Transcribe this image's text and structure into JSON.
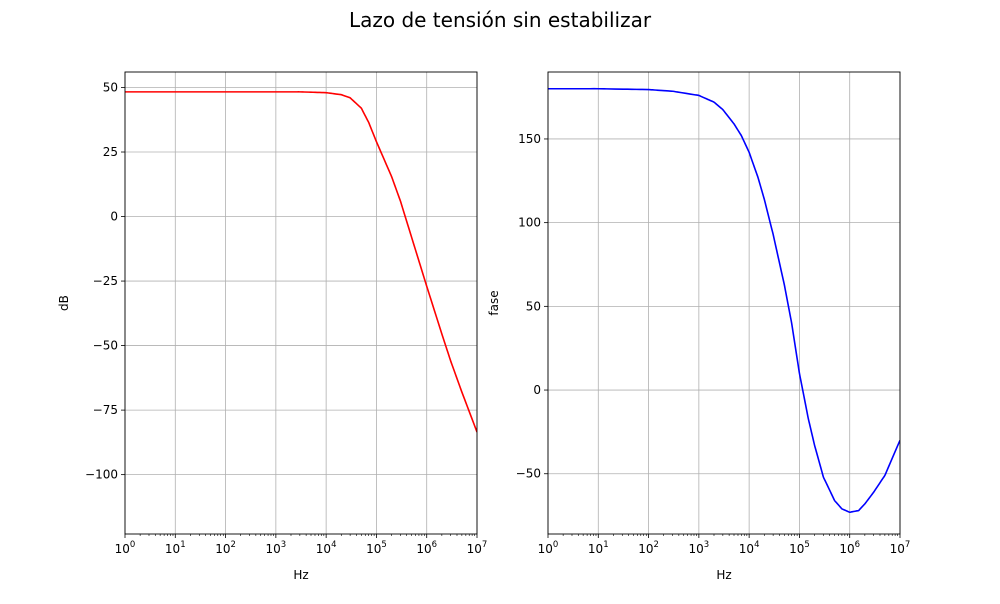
{
  "figure": {
    "title": "Lazo de tensión sin estabilizar"
  },
  "chart_data": [
    {
      "type": "line",
      "xlabel": "Hz",
      "ylabel": "dB",
      "xscale": "log",
      "xlim": [
        1,
        10000000
      ],
      "ylim": [
        -123,
        56
      ],
      "grid": true,
      "xticks": [
        {
          "base": "10",
          "exp": "0"
        },
        {
          "base": "10",
          "exp": "1"
        },
        {
          "base": "10",
          "exp": "2"
        },
        {
          "base": "10",
          "exp": "3"
        },
        {
          "base": "10",
          "exp": "4"
        },
        {
          "base": "10",
          "exp": "5"
        },
        {
          "base": "10",
          "exp": "6"
        },
        {
          "base": "10",
          "exp": "7"
        }
      ],
      "yticks": [
        {
          "value": 50,
          "label": "50"
        },
        {
          "value": 25,
          "label": "25"
        },
        {
          "value": 0,
          "label": "0"
        },
        {
          "value": -25,
          "label": "−25"
        },
        {
          "value": -50,
          "label": "−50"
        },
        {
          "value": -75,
          "label": "−75"
        },
        {
          "value": -100,
          "label": "−100"
        }
      ],
      "series": [
        {
          "color": "#ff0000",
          "x": [
            1,
            10,
            100,
            1000,
            3000,
            10000,
            20000,
            30000,
            50000,
            70000,
            100000,
            200000,
            300000,
            500000,
            1000000,
            2000000,
            3000000,
            5000000,
            10000000
          ],
          "y": [
            48.3,
            48.3,
            48.3,
            48.3,
            48.3,
            48.0,
            47.2,
            46.0,
            42.0,
            36.5,
            29.0,
            15.5,
            6.0,
            -8.0,
            -27.0,
            -45.5,
            -56.0,
            -68.0,
            -83.5
          ]
        }
      ]
    },
    {
      "type": "line",
      "xlabel": "Hz",
      "ylabel": "fase",
      "xscale": "log",
      "xlim": [
        1,
        10000000
      ],
      "ylim": [
        -86,
        190
      ],
      "grid": true,
      "xticks": [
        {
          "base": "10",
          "exp": "0"
        },
        {
          "base": "10",
          "exp": "1"
        },
        {
          "base": "10",
          "exp": "2"
        },
        {
          "base": "10",
          "exp": "3"
        },
        {
          "base": "10",
          "exp": "4"
        },
        {
          "base": "10",
          "exp": "5"
        },
        {
          "base": "10",
          "exp": "6"
        },
        {
          "base": "10",
          "exp": "7"
        }
      ],
      "yticks": [
        {
          "value": 150,
          "label": "150"
        },
        {
          "value": 100,
          "label": "100"
        },
        {
          "value": 50,
          "label": "50"
        },
        {
          "value": 0,
          "label": "0"
        },
        {
          "value": -50,
          "label": "−50"
        }
      ],
      "series": [
        {
          "color": "#0000ff",
          "x": [
            1,
            10,
            100,
            300,
            1000,
            2000,
            3000,
            5000,
            7000,
            10000,
            15000,
            20000,
            30000,
            50000,
            70000,
            100000,
            150000,
            200000,
            300000,
            500000,
            700000,
            1000000,
            1500000,
            2000000,
            3000000,
            5000000,
            10000000
          ],
          "y": [
            180,
            180,
            179.5,
            178.5,
            176,
            172,
            167.5,
            159,
            152,
            142,
            127,
            114,
            93,
            63,
            40,
            10,
            -17,
            -33,
            -52,
            -66,
            -71,
            -73,
            -72,
            -68,
            -61,
            -51,
            -30
          ]
        }
      ]
    }
  ]
}
